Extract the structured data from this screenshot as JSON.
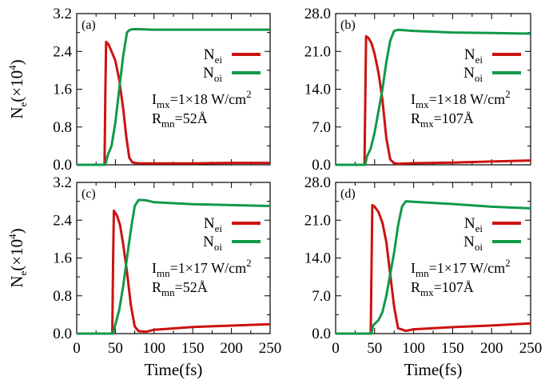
{
  "chart_data": [
    {
      "type": "line",
      "panel": "(a)",
      "xlabel": "",
      "ylabel_main": "N",
      "ylabel_sub": "e",
      "ylabel_tail": "(×10",
      "ylabel_exp": "4",
      "ylabel_close": ")",
      "xlim": [
        0,
        250
      ],
      "ylim": [
        0,
        3.2
      ],
      "yticks": [
        "0.0",
        "0.8",
        "1.6",
        "2.4",
        "3.2"
      ],
      "xticks": [],
      "annotation": [
        {
          "main": "I",
          "sub": "mx",
          "rest": "=1×18 W/cm",
          "sup": "2"
        },
        {
          "main": "R",
          "sub": "mn",
          "rest": "=52Å",
          "sup": ""
        }
      ],
      "legend": [
        {
          "main": "N",
          "sub": "ei",
          "color": "#cc1111"
        },
        {
          "main": "N",
          "sub": "oi",
          "color": "#11994a"
        }
      ],
      "series": [
        {
          "name": "Nei",
          "color": "#cc1111",
          "x": [
            0,
            36,
            37,
            38,
            41,
            45,
            50,
            55,
            60,
            64,
            68,
            72,
            80,
            100,
            150,
            200,
            250
          ],
          "y": [
            0,
            0,
            1.5,
            2.6,
            2.55,
            2.4,
            2.2,
            1.8,
            1.2,
            0.6,
            0.15,
            0.05,
            0.03,
            0.03,
            0.03,
            0.04,
            0.04
          ]
        },
        {
          "name": "Noi",
          "color": "#11994a",
          "x": [
            0,
            37,
            40,
            45,
            50,
            55,
            60,
            65,
            68,
            72,
            80,
            100,
            150,
            200,
            250
          ],
          "y": [
            0,
            0,
            0.2,
            0.4,
            0.9,
            1.6,
            2.3,
            2.8,
            2.85,
            2.87,
            2.87,
            2.86,
            2.86,
            2.86,
            2.86
          ]
        }
      ]
    },
    {
      "type": "line",
      "panel": "(b)",
      "xlabel": "",
      "xlim": [
        0,
        250
      ],
      "ylim": [
        0,
        28
      ],
      "yticks": [
        "0.0",
        "7.0",
        "14.0",
        "21.0",
        "28.0"
      ],
      "xticks": [],
      "annotation": [
        {
          "main": "I",
          "sub": "mx",
          "rest": "=1×18 W/cm",
          "sup": "2"
        },
        {
          "main": "R",
          "sub": "mx",
          "rest": "=107Å",
          "sup": ""
        }
      ],
      "legend": [
        {
          "main": "N",
          "sub": "ei",
          "color": "#cc1111"
        },
        {
          "main": "N",
          "sub": "oi",
          "color": "#11994a"
        }
      ],
      "series": [
        {
          "name": "Nei",
          "color": "#cc1111",
          "x": [
            0,
            37,
            38,
            39,
            42,
            46,
            50,
            55,
            60,
            65,
            70,
            75,
            80,
            100,
            150,
            200,
            250
          ],
          "y": [
            0,
            0,
            12,
            23.8,
            23.5,
            22.5,
            20.5,
            17,
            12,
            5,
            1,
            0.3,
            0.2,
            0.3,
            0.4,
            0.6,
            0.8
          ]
        },
        {
          "name": "Noi",
          "color": "#11994a",
          "x": [
            0,
            38,
            40,
            45,
            50,
            55,
            60,
            65,
            70,
            75,
            80,
            100,
            150,
            200,
            250
          ],
          "y": [
            0,
            0,
            1.5,
            3,
            6,
            10,
            14,
            19,
            23,
            24.8,
            25,
            24.8,
            24.5,
            24.4,
            24.3
          ]
        }
      ]
    },
    {
      "type": "line",
      "panel": "(c)",
      "xlabel": "Time(fs)",
      "ylabel_main": "N",
      "ylabel_sub": "e",
      "ylabel_tail": "(×10",
      "ylabel_exp": "4",
      "ylabel_close": ")",
      "xlim": [
        0,
        250
      ],
      "ylim": [
        0,
        3.2
      ],
      "yticks": [
        "0.0",
        "0.8",
        "1.6",
        "2.4",
        "3.2"
      ],
      "xticks": [
        "0",
        "50",
        "100",
        "150",
        "200",
        "250"
      ],
      "annotation": [
        {
          "main": "I",
          "sub": "mn",
          "rest": "=1×17 W/cm",
          "sup": "2"
        },
        {
          "main": "R",
          "sub": "mn",
          "rest": "=52Å",
          "sup": ""
        }
      ],
      "legend": [
        {
          "main": "N",
          "sub": "ei",
          "color": "#cc1111"
        },
        {
          "main": "N",
          "sub": "oi",
          "color": "#11994a"
        }
      ],
      "series": [
        {
          "name": "Nei",
          "color": "#cc1111",
          "x": [
            0,
            46,
            47,
            48,
            52,
            56,
            60,
            65,
            70,
            75,
            80,
            90,
            100,
            150,
            200,
            250
          ],
          "y": [
            0,
            0,
            1.5,
            2.6,
            2.5,
            2.3,
            1.9,
            1.3,
            0.6,
            0.15,
            0.05,
            0.04,
            0.08,
            0.14,
            0.17,
            0.2
          ]
        },
        {
          "name": "Noi",
          "color": "#11994a",
          "x": [
            0,
            47,
            50,
            55,
            60,
            65,
            70,
            75,
            80,
            90,
            100,
            150,
            200,
            250
          ],
          "y": [
            0,
            0,
            0.2,
            0.5,
            1.0,
            1.6,
            2.2,
            2.7,
            2.83,
            2.82,
            2.78,
            2.74,
            2.72,
            2.7
          ]
        }
      ]
    },
    {
      "type": "line",
      "panel": "(d)",
      "xlabel": "Time(fs)",
      "xlim": [
        0,
        250
      ],
      "ylim": [
        0,
        28
      ],
      "yticks": [
        "0.0",
        "7.0",
        "14.0",
        "21.0",
        "28.0"
      ],
      "xticks": [
        "0",
        "50",
        "100",
        "150",
        "200",
        "250"
      ],
      "annotation": [
        {
          "main": "I",
          "sub": "mn",
          "rest": "=1×17 W/cm",
          "sup": "2"
        },
        {
          "main": "R",
          "sub": "mx",
          "rest": "=107Å",
          "sup": ""
        }
      ],
      "legend": [
        {
          "main": "N",
          "sub": "ei",
          "color": "#cc1111"
        },
        {
          "main": "N",
          "sub": "oi",
          "color": "#11994a"
        }
      ],
      "series": [
        {
          "name": "Nei",
          "color": "#cc1111",
          "x": [
            0,
            45,
            46,
            47,
            50,
            55,
            60,
            65,
            70,
            75,
            80,
            90,
            100,
            150,
            200,
            250
          ],
          "y": [
            0,
            0,
            12,
            23.8,
            23.5,
            22.5,
            20.5,
            17,
            11,
            5,
            1,
            0.5,
            0.8,
            1.2,
            1.5,
            1.9
          ]
        },
        {
          "name": "Noi",
          "color": "#11994a",
          "x": [
            0,
            46,
            48,
            55,
            60,
            65,
            70,
            75,
            80,
            85,
            90,
            100,
            150,
            200,
            250
          ],
          "y": [
            0,
            0,
            1.5,
            2.5,
            4,
            7,
            11,
            15,
            20,
            23.5,
            24.5,
            24.4,
            24,
            23.5,
            23.2
          ]
        }
      ]
    }
  ]
}
